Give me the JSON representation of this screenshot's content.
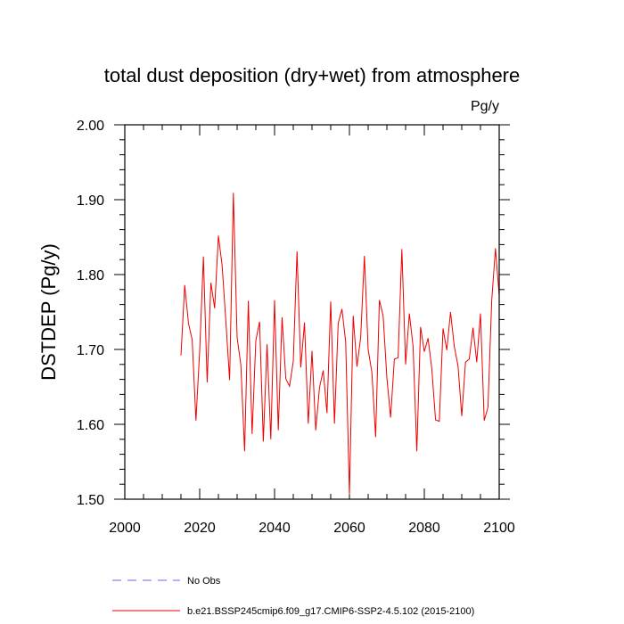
{
  "chart_data": {
    "type": "line",
    "title": "total dust deposition (dry+wet) from atmosphere",
    "units": "Pg/y",
    "xlabel": "",
    "ylabel": "DSTDEP  (Pg/y)",
    "xlim": [
      2000,
      2100
    ],
    "ylim": [
      1.5,
      2.0
    ],
    "x_ticks": [
      2000,
      2020,
      2040,
      2060,
      2080,
      2100
    ],
    "y_ticks": [
      1.5,
      1.6,
      1.7,
      1.8,
      1.9,
      2.0
    ],
    "x_tick_labels": [
      "2000",
      "2020",
      "2040",
      "2060",
      "2080",
      "2100"
    ],
    "y_tick_labels": [
      "1.50",
      "1.60",
      "1.70",
      "1.80",
      "1.90",
      "2.00"
    ],
    "colors": {
      "series": "#ee0000",
      "obs": "#6666ee"
    },
    "legend": [
      {
        "label": "No Obs",
        "style": "dashed"
      },
      {
        "label": "b.e21.BSSP245cmip6.f09_g17.CMIP6-SSP2-4.5.102 (2015-2100)",
        "style": "solid"
      }
    ],
    "series": [
      {
        "name": "b.e21.BSSP245cmip6.f09_g17.CMIP6-SSP2-4.5.102 (2015-2100)",
        "x": [
          2015,
          2016,
          2017,
          2018,
          2019,
          2020,
          2021,
          2022,
          2023,
          2024,
          2025,
          2026,
          2027,
          2028,
          2029,
          2030,
          2031,
          2032,
          2033,
          2034,
          2035,
          2036,
          2037,
          2038,
          2039,
          2040,
          2041,
          2042,
          2043,
          2044,
          2045,
          2046,
          2047,
          2048,
          2049,
          2050,
          2051,
          2052,
          2053,
          2054,
          2055,
          2056,
          2057,
          2058,
          2059,
          2060,
          2061,
          2062,
          2063,
          2064,
          2065,
          2066,
          2067,
          2068,
          2069,
          2070,
          2071,
          2072,
          2073,
          2074,
          2075,
          2076,
          2077,
          2078,
          2079,
          2080,
          2081,
          2082,
          2083,
          2084,
          2085,
          2086,
          2087,
          2088,
          2089,
          2090,
          2091,
          2092,
          2093,
          2094,
          2095,
          2096,
          2097,
          2098,
          2099,
          2100
        ],
        "values": [
          1.692,
          1.786,
          1.735,
          1.713,
          1.605,
          1.698,
          1.824,
          1.656,
          1.789,
          1.755,
          1.852,
          1.812,
          1.737,
          1.659,
          1.909,
          1.716,
          1.679,
          1.564,
          1.765,
          1.587,
          1.712,
          1.737,
          1.577,
          1.707,
          1.58,
          1.766,
          1.592,
          1.743,
          1.661,
          1.651,
          1.684,
          1.831,
          1.676,
          1.736,
          1.601,
          1.698,
          1.592,
          1.649,
          1.672,
          1.615,
          1.764,
          1.601,
          1.735,
          1.754,
          1.71,
          1.506,
          1.745,
          1.677,
          1.716,
          1.825,
          1.7,
          1.669,
          1.583,
          1.766,
          1.745,
          1.662,
          1.609,
          1.687,
          1.689,
          1.834,
          1.68,
          1.748,
          1.704,
          1.564,
          1.73,
          1.697,
          1.715,
          1.674,
          1.606,
          1.604,
          1.728,
          1.699,
          1.75,
          1.704,
          1.678,
          1.611,
          1.683,
          1.687,
          1.729,
          1.683,
          1.748,
          1.605,
          1.623,
          1.765,
          1.835,
          1.772
        ]
      }
    ]
  }
}
